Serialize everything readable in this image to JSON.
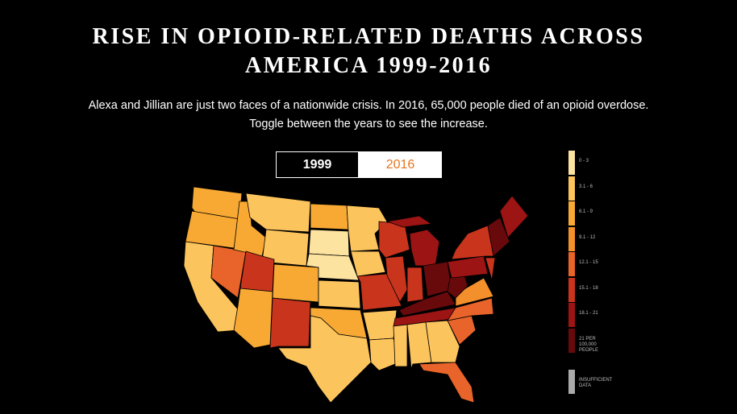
{
  "header": {
    "title_lines": [
      "RISE IN OPIOID-RELATED DEATHS ACROSS",
      "AMERICA 1999-2016"
    ],
    "subtitle_lines": [
      "Alexa and Jillian are just two faces of a nationwide crisis. In 2016, 65,000 people died of an opioid overdose.",
      "Toggle between the years to see the increase."
    ]
  },
  "toggle": {
    "options": [
      "1999",
      "2016"
    ],
    "selected": 1,
    "selected_color": "#e8741e"
  },
  "legend": {
    "items": [
      {
        "label": "0 - 3",
        "color": "#fde3a0"
      },
      {
        "label": "3.1 - 6",
        "color": "#fcc45c"
      },
      {
        "label": "6.1 - 9",
        "color": "#f8a934"
      },
      {
        "label": "9.1 - 12",
        "color": "#f4902c"
      },
      {
        "label": "12.1 - 15",
        "color": "#e8642a"
      },
      {
        "label": "15.1 - 18",
        "color": "#c9341d"
      },
      {
        "label": "18.1 - 21",
        "color": "#9c1414"
      },
      {
        "label": "21 PER 100,000 PEOPLE",
        "color": "#680a0c"
      }
    ],
    "no_data": {
      "label": "INSUFFICIENT DATA",
      "color": "#aaaaaa"
    }
  }
}
